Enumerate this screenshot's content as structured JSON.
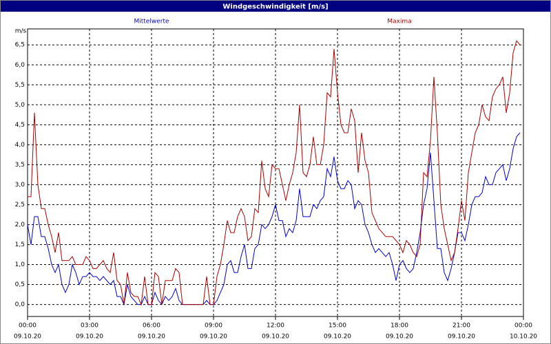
{
  "chart_data": {
    "type": "line",
    "title": "Windgeschwindigkeit [m/s]",
    "y_unit": "m/s",
    "x": [
      0,
      10,
      20,
      30,
      40,
      50,
      60,
      70,
      80,
      90,
      100,
      110,
      120,
      130,
      140,
      150,
      160,
      170,
      180,
      190,
      200,
      210,
      220,
      230,
      240,
      250,
      260,
      270,
      280,
      290,
      300,
      310,
      320,
      330,
      340,
      350,
      360,
      370,
      380,
      390,
      400,
      410,
      420,
      430,
      440,
      450,
      460,
      470,
      480,
      490,
      500,
      510,
      520,
      530,
      540,
      550,
      560,
      570,
      580,
      590,
      600,
      610,
      620,
      630,
      640,
      650,
      660,
      670,
      680,
      690,
      700,
      710,
      720,
      730,
      740,
      750,
      760,
      770,
      780,
      790,
      800,
      810,
      820,
      830,
      840,
      850,
      860,
      870,
      880,
      890,
      900,
      910,
      920,
      930,
      940,
      950,
      960,
      970,
      980,
      990,
      1000,
      1010,
      1020,
      1030,
      1040,
      1050,
      1060,
      1070,
      1080,
      1090,
      1100,
      1110,
      1120,
      1130,
      1140,
      1150,
      1160,
      1170,
      1180,
      1190,
      1200,
      1210,
      1220,
      1230,
      1240,
      1250,
      1260,
      1270,
      1280,
      1290,
      1300,
      1310,
      1320,
      1330,
      1340,
      1350,
      1360,
      1370,
      1380,
      1390,
      1400,
      1410,
      1420,
      1430
    ],
    "series": [
      {
        "name": "Mittelwerte",
        "color": "#0000cc",
        "values": [
          2.0,
          1.5,
          2.2,
          2.2,
          1.7,
          1.7,
          1.4,
          1.0,
          0.8,
          1.0,
          0.5,
          0.3,
          0.5,
          1.0,
          0.8,
          0.5,
          0.7,
          0.7,
          0.8,
          0.7,
          0.7,
          0.6,
          0.7,
          0.6,
          0.5,
          0.6,
          0.2,
          0.2,
          0,
          0.5,
          0.2,
          0.1,
          0,
          0,
          0.2,
          0,
          0,
          0.3,
          0.1,
          0,
          0.2,
          0.1,
          0.2,
          0.4,
          0.1,
          0,
          0,
          0,
          0,
          0,
          0,
          0,
          0.1,
          0,
          0,
          0.1,
          0.3,
          0.5,
          1.0,
          1.1,
          0.8,
          0.8,
          1.2,
          1.5,
          0.9,
          0.9,
          1.4,
          1.5,
          2.0,
          1.9,
          2.0,
          2.2,
          2.5,
          2.1,
          2.1,
          1.7,
          1.9,
          1.8,
          2.1,
          2.9,
          2.2,
          2.2,
          2.2,
          2.5,
          2.4,
          2.6,
          2.7,
          3.4,
          3.2,
          3.7,
          3.1,
          2.9,
          2.9,
          3.1,
          3.0,
          2.4,
          2.6,
          2.5,
          2.0,
          1.8,
          1.5,
          1.3,
          1.4,
          1.3,
          1.2,
          1.3,
          1.0,
          0.6,
          1.0,
          1.1,
          0.9,
          0.8,
          0.9,
          1.3,
          1.8,
          2.5,
          2.9,
          3.8,
          2.6,
          1.4,
          1.4,
          0.8,
          0.6,
          0.9,
          1.3,
          1.8,
          1.8,
          1.6,
          2.0,
          2.5,
          2.7,
          2.7,
          2.8,
          3.2,
          3.0,
          3.0,
          3.3,
          3.4,
          3.5,
          3.1,
          3.4,
          3.9,
          4.2,
          4.3
        ]
      },
      {
        "name": "Maxima",
        "color": "#aa0000",
        "values": [
          2.7,
          2.7,
          4.8,
          3.0,
          2.4,
          2.4,
          2.0,
          1.7,
          1.3,
          1.8,
          1.1,
          1.1,
          1.1,
          1.2,
          1.0,
          1.0,
          1.0,
          1.2,
          1.1,
          0.9,
          0.9,
          1.0,
          1.1,
          0.9,
          0.8,
          1.3,
          0.6,
          0.5,
          0,
          0.8,
          0.3,
          0.2,
          0.2,
          0,
          0.7,
          0,
          0,
          0.8,
          0.7,
          0,
          0.6,
          0.6,
          0.6,
          0.9,
          0.8,
          0,
          0,
          0,
          0,
          0,
          0,
          0,
          0.7,
          0,
          0,
          0.7,
          1.0,
          1.5,
          2.1,
          1.8,
          1.8,
          2.2,
          2.4,
          2.2,
          1.6,
          1.7,
          2.4,
          2.3,
          3.6,
          2.9,
          2.7,
          3.5,
          3.4,
          3.4,
          3.0,
          2.6,
          3.0,
          3.3,
          3.8,
          5.0,
          3.3,
          3.2,
          3.5,
          4.2,
          3.5,
          3.5,
          4.0,
          5.3,
          5.2,
          6.4,
          5.3,
          4.5,
          4.3,
          4.3,
          4.9,
          4.6,
          3.3,
          4.3,
          3.6,
          3.3,
          2.3,
          2.1,
          1.9,
          1.8,
          1.7,
          1.7,
          1.7,
          1.6,
          1.5,
          1.3,
          1.6,
          1.5,
          1.3,
          1.2,
          1.5,
          3.3,
          3.2,
          4.1,
          5.7,
          4.3,
          2.5,
          1.9,
          1.5,
          1.1,
          1.3,
          1.9,
          2.6,
          2.1,
          3.3,
          3.8,
          4.3,
          4.5,
          5.0,
          4.7,
          4.6,
          5.2,
          5.4,
          5.5,
          5.7,
          4.8,
          5.3,
          6.3,
          6.6,
          6.5
        ]
      }
    ],
    "xlim": [
      0,
      1440
    ],
    "xticks": [
      {
        "value": 0,
        "label": "00:00"
      },
      {
        "value": 180,
        "label": "03:00"
      },
      {
        "value": 360,
        "label": "06:00"
      },
      {
        "value": 540,
        "label": "09:00"
      },
      {
        "value": 720,
        "label": "12:00"
      },
      {
        "value": 900,
        "label": "15:00"
      },
      {
        "value": 1080,
        "label": "18:00"
      },
      {
        "value": 1260,
        "label": "21:00"
      },
      {
        "value": 1440,
        "label": "00:00"
      }
    ],
    "xtick_dates": [
      "09.10.20",
      "09.10.20",
      "09.10.20",
      "09.10.20",
      "09.10.20",
      "09.10.20",
      "09.10.20",
      "09.10.20",
      "10.10.20"
    ],
    "ylim": [
      -0.3,
      6.9
    ],
    "yticks": [
      {
        "value": 0,
        "label": "0,0"
      },
      {
        "value": 0.5,
        "label": "0,5"
      },
      {
        "value": 1,
        "label": "1,0"
      },
      {
        "value": 1.5,
        "label": "1,5"
      },
      {
        "value": 2,
        "label": "2,0"
      },
      {
        "value": 2.5,
        "label": "2,5"
      },
      {
        "value": 3,
        "label": "3,0"
      },
      {
        "value": 3.5,
        "label": "3,5"
      },
      {
        "value": 4,
        "label": "4,0"
      },
      {
        "value": 4.5,
        "label": "4,5"
      },
      {
        "value": 5,
        "label": "5,0"
      },
      {
        "value": 5.5,
        "label": "5,5"
      },
      {
        "value": 6,
        "label": "6,0"
      },
      {
        "value": 6.5,
        "label": "6,5"
      }
    ],
    "grid": true
  }
}
